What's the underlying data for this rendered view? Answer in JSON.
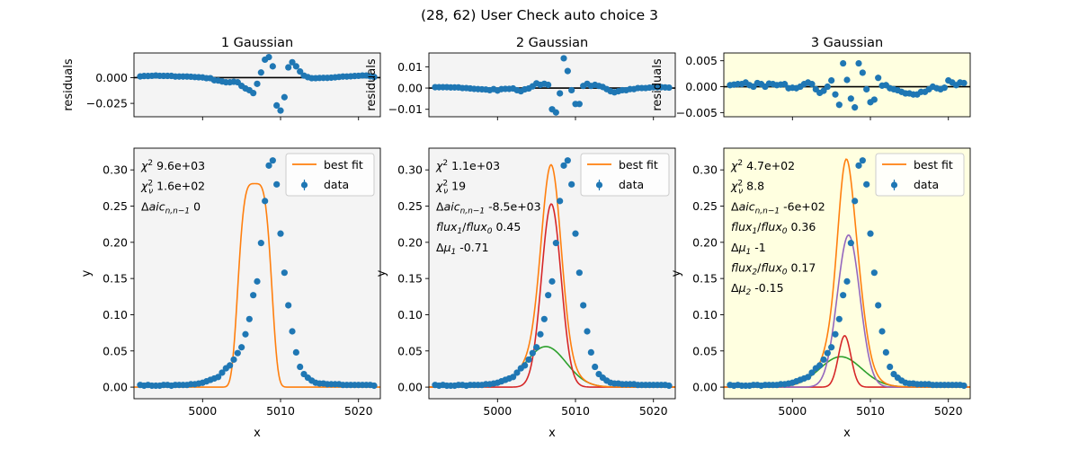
{
  "figure": {
    "suptitle": "(28, 62) User Check auto choice 3"
  },
  "colors": {
    "data": "#1f77b4",
    "best_fit": "#ff7f0e",
    "comp1": "#2ca02c",
    "comp2": "#d62728",
    "comp3": "#9467bd",
    "panel_bg": "#f4f4f4",
    "chosen_bg": "#ffffe0"
  },
  "chart_data": [
    {
      "type": "scatter",
      "title": "1 Gaussian",
      "chosen": false,
      "residuals": {
        "ylabel": "residuals",
        "ylim": [
          -0.038,
          0.024
        ],
        "yticks": [
          0.0,
          -0.025
        ],
        "ytick_labels": [
          "0.000",
          "−0.025"
        ]
      },
      "main": {
        "xlabel": "x",
        "ylabel": "y",
        "xlim": [
          4991.2,
          5022.8
        ],
        "ylim": [
          -0.016,
          0.33
        ],
        "xticks": [
          5000,
          5010,
          5020
        ],
        "yticks": [
          0.0,
          0.05,
          0.1,
          0.15,
          0.2,
          0.25,
          0.3
        ],
        "ytick_labels": [
          "0.00",
          "0.05",
          "0.10",
          "0.15",
          "0.20",
          "0.25",
          "0.30"
        ],
        "legend": [
          "best fit",
          "data"
        ],
        "stats": [
          {
            "label": "χ²",
            "value": "9.6e+03"
          },
          {
            "label": "χ²ν",
            "value": "1.6e+02"
          },
          {
            "label": "Δaic n,n−1",
            "value": "0"
          }
        ],
        "components": [
          {
            "amp": 0.281,
            "mu": 5006.7,
            "sigma": 1.6,
            "flat": 0.8,
            "power": 4
          }
        ],
        "best_fit_components": [
          0
        ]
      }
    },
    {
      "type": "scatter",
      "title": "2 Gaussian",
      "chosen": false,
      "residuals": {
        "ylabel": "residuals",
        "ylim": [
          -0.0135,
          0.0165
        ],
        "yticks": [
          0.01,
          0.0,
          -0.01
        ],
        "ytick_labels": [
          "0.01",
          "0.00",
          "−0.01"
        ]
      },
      "main": {
        "xlabel": "x",
        "ylabel": "y",
        "xlim": [
          4991.2,
          5022.8
        ],
        "ylim": [
          -0.016,
          0.33
        ],
        "xticks": [
          5000,
          5010,
          5020
        ],
        "yticks": [
          0.0,
          0.05,
          0.1,
          0.15,
          0.2,
          0.25,
          0.3
        ],
        "ytick_labels": [
          "0.00",
          "0.05",
          "0.10",
          "0.15",
          "0.20",
          "0.25",
          "0.30"
        ],
        "legend": [
          "best fit",
          "data"
        ],
        "stats": [
          {
            "label": "χ²",
            "value": "1.1e+03"
          },
          {
            "label": "χ²ν",
            "value": "19"
          },
          {
            "label": "Δaic n,n−1",
            "value": "-8.5e+03"
          },
          {
            "label": "flux1/flux0",
            "value": "0.45"
          },
          {
            "label": "Δμ1",
            "value": "-0.71"
          }
        ],
        "components": [
          {
            "amp": 0.056,
            "mu": 5006.2,
            "sigma": 2.6
          },
          {
            "amp": 0.253,
            "mu": 5006.9,
            "sigma": 1.25
          }
        ]
      }
    },
    {
      "type": "scatter",
      "title": "3 Gaussian",
      "chosen": true,
      "residuals": {
        "ylabel": "residuals",
        "ylim": [
          -0.0058,
          0.0065
        ],
        "yticks": [
          0.005,
          0.0,
          -0.005
        ],
        "ytick_labels": [
          "0.005",
          "0.000",
          "−0.005"
        ]
      },
      "main": {
        "xlabel": "x",
        "ylabel": "y",
        "xlim": [
          4991.2,
          5022.8
        ],
        "ylim": [
          -0.016,
          0.33
        ],
        "xticks": [
          5000,
          5010,
          5020
        ],
        "yticks": [
          0.0,
          0.05,
          0.1,
          0.15,
          0.2,
          0.25,
          0.3
        ],
        "ytick_labels": [
          "0.00",
          "0.05",
          "0.10",
          "0.15",
          "0.20",
          "0.25",
          "0.30"
        ],
        "legend": [
          "best fit",
          "data"
        ],
        "stats": [
          {
            "label": "χ²",
            "value": "4.7e+02"
          },
          {
            "label": "χ²ν",
            "value": "8.8"
          },
          {
            "label": "Δaic n,n−1",
            "value": "-6e+02"
          },
          {
            "label": "flux1/flux0",
            "value": "0.36"
          },
          {
            "label": "Δμ1",
            "value": "-1"
          },
          {
            "label": "flux2/flux0",
            "value": "0.17"
          },
          {
            "label": "Δμ2",
            "value": "-0.15"
          }
        ],
        "components": [
          {
            "amp": 0.042,
            "mu": 5006.2,
            "sigma": 2.7
          },
          {
            "amp": 0.071,
            "mu": 5006.7,
            "sigma": 0.8
          },
          {
            "amp": 0.21,
            "mu": 5007.2,
            "sigma": 1.45
          }
        ]
      }
    }
  ],
  "data_points": {
    "x_start": 4992.0,
    "x_step": 0.5,
    "y": [
      0.003,
      0.002,
      0.003,
      0.002,
      0.002,
      0.002,
      0.003,
      0.003,
      0.002,
      0.003,
      0.003,
      0.003,
      0.003,
      0.004,
      0.004,
      0.005,
      0.006,
      0.008,
      0.01,
      0.012,
      0.014,
      0.02,
      0.026,
      0.03,
      0.038,
      0.047,
      0.055,
      0.073,
      0.094,
      0.127,
      0.146,
      0.199,
      0.257,
      0.306,
      0.313,
      0.28,
      0.212,
      0.158,
      0.113,
      0.077,
      0.048,
      0.028,
      0.018,
      0.013,
      0.009,
      0.006,
      0.005,
      0.005,
      0.004,
      0.004,
      0.004,
      0.004,
      0.003,
      0.003,
      0.003,
      0.003,
      0.003,
      0.003,
      0.003,
      0.003,
      0.002
    ],
    "res1": [
      0.0012,
      0.0016,
      0.0016,
      0.0018,
      0.0021,
      0.0018,
      0.0017,
      0.0017,
      0.0017,
      0.0011,
      0.0011,
      0.0011,
      0.0011,
      0.0009,
      0.0006,
      0.0004,
      0.0002,
      -0.0005,
      -0.0005,
      -0.0025,
      -0.0028,
      -0.0037,
      -0.0045,
      -0.0045,
      -0.004,
      -0.0045,
      -0.008,
      -0.0105,
      -0.0122,
      -0.015,
      -0.006,
      0.005,
      0.0175,
      0.02,
      0.011,
      -0.027,
      -0.032,
      -0.019,
      0.01,
      0.015,
      0.011,
      0.006,
      0.002,
      0.0005,
      -0.0005,
      -0.0005,
      -0.0003,
      -0.0002,
      -0.0002,
      0.0,
      0.0003,
      0.0007,
      0.0011,
      0.0011,
      0.0013,
      0.0016,
      0.0018,
      0.0021,
      0.0021,
      0.0013,
      0.0007
    ],
    "res2": [
      0.0004,
      0.0004,
      0.0004,
      0.0004,
      0.0003,
      0.0003,
      0.0003,
      0.0,
      0.0,
      -0.0002,
      -0.0004,
      -0.0005,
      -0.0006,
      -0.0007,
      -0.001,
      -0.0005,
      -0.0012,
      -0.0005,
      -0.0004,
      -0.0004,
      -0.0002,
      -0.001,
      -0.0015,
      -0.0006,
      -0.0002,
      0.0008,
      0.0022,
      0.0015,
      0.002,
      0.0015,
      -0.01,
      -0.0115,
      -0.0025,
      0.014,
      0.008,
      -0.001,
      -0.0075,
      -0.0075,
      0.001,
      0.002,
      0.001,
      0.0015,
      0.001,
      0.0005,
      -0.0005,
      -0.0015,
      -0.002,
      -0.0015,
      -0.001,
      -0.001,
      -0.0005,
      -0.0005,
      0.0,
      0.0,
      0.0,
      0.0002,
      0.0004,
      0.0004,
      0.0004,
      0.0003,
      0.0002
    ],
    "res3": [
      0.0003,
      0.0004,
      0.0005,
      0.0005,
      0.0008,
      0.0003,
      0.0,
      0.0007,
      0.0005,
      0.0,
      0.0006,
      0.0005,
      0.0003,
      0.0004,
      0.0005,
      -0.0003,
      -0.0002,
      -0.0003,
      0.0,
      0.0005,
      0.0008,
      0.0005,
      -0.0005,
      -0.0012,
      -0.0008,
      0.0,
      0.0012,
      -0.0015,
      -0.0035,
      0.0045,
      0.0013,
      -0.0023,
      -0.004,
      0.0045,
      0.0027,
      -0.0005,
      -0.003,
      -0.0025,
      0.0017,
      0.0002,
      0.0003,
      -0.0003,
      -0.0005,
      -0.0007,
      -0.001,
      -0.0013,
      -0.0013,
      -0.0015,
      -0.0015,
      -0.001,
      -0.001,
      -0.0005,
      0.0,
      -0.0003,
      -0.0005,
      -0.0002,
      0.0012,
      0.0008,
      0.0003,
      0.0008,
      0.0007
    ],
    "res_err": [
      0.0006,
      0.0012,
      0.0006
    ]
  }
}
